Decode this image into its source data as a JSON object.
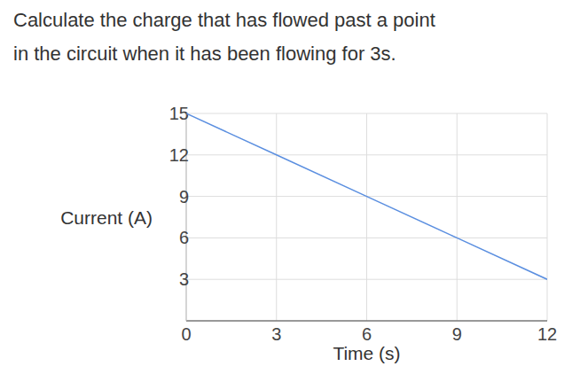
{
  "chart_data": {
    "type": "line",
    "title": [
      "Calculate the charge that has flowed past a point",
      "in the circuit when it has been flowing for 3s."
    ],
    "x_label": "Time (s)",
    "y_label": "Current (A)",
    "x": [
      0,
      3,
      6,
      9,
      12
    ],
    "values": [
      15,
      12,
      9,
      6,
      3
    ],
    "color": "#5b8fe0",
    "xlim": [
      0,
      12
    ],
    "xticks": [
      0,
      3,
      6,
      9,
      12
    ],
    "ylim": [
      0,
      15
    ],
    "yticks": [
      3,
      6,
      9,
      12,
      15
    ],
    "grid": true
  }
}
